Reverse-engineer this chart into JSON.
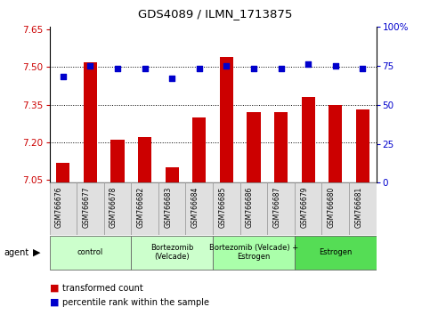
{
  "title": "GDS4089 / ILMN_1713875",
  "samples": [
    "GSM766676",
    "GSM766677",
    "GSM766678",
    "GSM766682",
    "GSM766683",
    "GSM766684",
    "GSM766685",
    "GSM766686",
    "GSM766687",
    "GSM766679",
    "GSM766680",
    "GSM766681"
  ],
  "transformed_count": [
    7.12,
    7.52,
    7.21,
    7.22,
    7.1,
    7.3,
    7.54,
    7.32,
    7.32,
    7.38,
    7.35,
    7.33
  ],
  "percentile_rank": [
    68,
    75,
    73,
    73,
    67,
    73,
    75,
    73,
    73,
    76,
    75,
    73
  ],
  "group_labels": [
    "control",
    "Bortezomib\n(Velcade)",
    "Bortezomib (Velcade) +\nEstrogen",
    "Estrogen"
  ],
  "group_ranges": [
    [
      0,
      3
    ],
    [
      3,
      6
    ],
    [
      6,
      9
    ],
    [
      9,
      12
    ]
  ],
  "group_colors": [
    "#ccffcc",
    "#ccffcc",
    "#aaffaa",
    "#55dd55"
  ],
  "ylim_left": [
    7.04,
    7.66
  ],
  "ylim_right": [
    0,
    100
  ],
  "yticks_left": [
    7.05,
    7.2,
    7.35,
    7.5,
    7.65
  ],
  "yticks_right": [
    0,
    25,
    50,
    75,
    100
  ],
  "ytick_right_labels": [
    "0",
    "25",
    "50",
    "75",
    "100%"
  ],
  "bar_color": "#cc0000",
  "dot_color": "#0000cc",
  "bar_width": 0.5,
  "legend_bar_label": "transformed count",
  "legend_dot_label": "percentile rank within the sample",
  "grid_lines": [
    7.2,
    7.35,
    7.5
  ]
}
